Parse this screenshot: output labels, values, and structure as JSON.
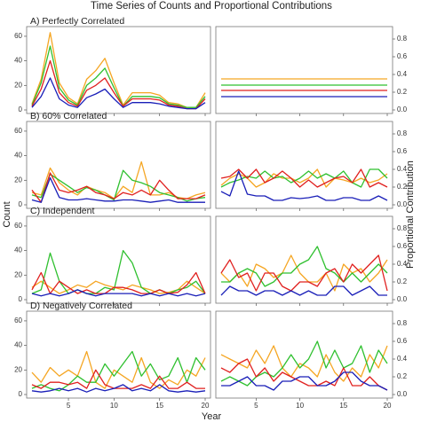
{
  "title": "Time Series of Counts and Proportional Contributions",
  "xlabel": "Year",
  "ylabel_left": "Count",
  "ylabel_right": "Proportional Contribution",
  "colors": {
    "orange": "#f5a623",
    "green": "#2fc02f",
    "red": "#e0201f",
    "blue": "#1a1fb8"
  },
  "panel_labels": [
    "A) Perfectly Correlated",
    "B) 60% Correlated",
    "C) Independent",
    "D) Negatively Correlated"
  ],
  "x_ticks": [
    "5",
    "10",
    "15",
    "20"
  ],
  "count_ticks": [
    "0",
    "20",
    "40",
    "60"
  ],
  "prop_ticks": [
    "0.0",
    "0.2",
    "0.4",
    "0.6",
    "0.8"
  ],
  "chart_data": [
    {
      "type": "line",
      "panel": "A) Perfectly Correlated",
      "measure": "count",
      "x": [
        1,
        2,
        3,
        4,
        5,
        6,
        7,
        8,
        9,
        10,
        11,
        12,
        13,
        14,
        15,
        16,
        17,
        18,
        19,
        20
      ],
      "xlim": [
        1,
        20
      ],
      "ylim": [
        0,
        65
      ],
      "series": [
        {
          "color": "orange",
          "values": [
            5,
            25,
            63,
            22,
            10,
            5,
            25,
            32,
            42,
            22,
            4,
            14,
            14,
            14,
            12,
            6,
            5,
            2,
            2,
            14
          ]
        },
        {
          "color": "green",
          "values": [
            4,
            22,
            52,
            18,
            8,
            4,
            20,
            26,
            34,
            18,
            3,
            11,
            11,
            11,
            10,
            5,
            4,
            2,
            2,
            11
          ]
        },
        {
          "color": "red",
          "values": [
            3,
            17,
            40,
            14,
            6,
            3,
            16,
            20,
            26,
            14,
            3,
            9,
            9,
            9,
            8,
            4,
            3,
            1,
            1,
            9
          ]
        },
        {
          "color": "blue",
          "values": [
            2,
            11,
            26,
            9,
            4,
            2,
            10,
            13,
            17,
            9,
            2,
            6,
            6,
            6,
            5,
            3,
            2,
            1,
            1,
            6
          ]
        }
      ]
    },
    {
      "type": "line",
      "panel": "A) Perfectly Correlated",
      "measure": "proportion",
      "x": [
        1,
        2,
        3,
        4,
        5,
        6,
        7,
        8,
        9,
        10,
        11,
        12,
        13,
        14,
        15,
        16,
        17,
        18,
        19,
        20
      ],
      "xlim": [
        1,
        20
      ],
      "ylim": [
        0,
        0.9
      ],
      "series": [
        {
          "color": "orange",
          "values": [
            0.35,
            0.35,
            0.35,
            0.35,
            0.35,
            0.35,
            0.35,
            0.35,
            0.35,
            0.35,
            0.35,
            0.35,
            0.35,
            0.35,
            0.35,
            0.35,
            0.35,
            0.35,
            0.35,
            0.35
          ]
        },
        {
          "color": "green",
          "values": [
            0.28,
            0.28,
            0.28,
            0.28,
            0.28,
            0.28,
            0.28,
            0.28,
            0.28,
            0.28,
            0.28,
            0.28,
            0.28,
            0.28,
            0.28,
            0.28,
            0.28,
            0.28,
            0.28,
            0.28
          ]
        },
        {
          "color": "red",
          "values": [
            0.22,
            0.22,
            0.22,
            0.22,
            0.22,
            0.22,
            0.22,
            0.22,
            0.22,
            0.22,
            0.22,
            0.22,
            0.22,
            0.22,
            0.22,
            0.22,
            0.22,
            0.22,
            0.22,
            0.22
          ]
        },
        {
          "color": "blue",
          "values": [
            0.15,
            0.15,
            0.15,
            0.15,
            0.15,
            0.15,
            0.15,
            0.15,
            0.15,
            0.15,
            0.15,
            0.15,
            0.15,
            0.15,
            0.15,
            0.15,
            0.15,
            0.15,
            0.15,
            0.15
          ]
        }
      ]
    },
    {
      "type": "line",
      "panel": "B) 60% Correlated",
      "measure": "count",
      "x": [
        1,
        2,
        3,
        4,
        5,
        6,
        7,
        8,
        9,
        10,
        11,
        12,
        13,
        14,
        15,
        16,
        17,
        18,
        19,
        20
      ],
      "xlim": [
        1,
        20
      ],
      "ylim": [
        0,
        65
      ],
      "series": [
        {
          "color": "orange",
          "values": [
            10,
            8,
            30,
            18,
            12,
            8,
            15,
            12,
            10,
            5,
            15,
            10,
            35,
            8,
            8,
            10,
            6,
            5,
            8,
            10
          ]
        },
        {
          "color": "green",
          "values": [
            8,
            6,
            25,
            20,
            15,
            10,
            14,
            12,
            8,
            4,
            28,
            20,
            18,
            15,
            10,
            8,
            6,
            3,
            5,
            6
          ]
        },
        {
          "color": "red",
          "values": [
            12,
            2,
            26,
            12,
            10,
            12,
            15,
            10,
            8,
            5,
            10,
            8,
            12,
            8,
            20,
            12,
            5,
            5,
            5,
            8
          ]
        },
        {
          "color": "blue",
          "values": [
            4,
            2,
            22,
            6,
            4,
            4,
            5,
            4,
            3,
            3,
            4,
            4,
            3,
            2,
            3,
            4,
            2,
            2,
            2,
            2
          ]
        }
      ]
    },
    {
      "type": "line",
      "panel": "B) 60% Correlated",
      "measure": "proportion",
      "x": [
        1,
        2,
        3,
        4,
        5,
        6,
        7,
        8,
        9,
        10,
        11,
        12,
        13,
        14,
        15,
        16,
        17,
        18,
        19,
        20
      ],
      "xlim": [
        1,
        20
      ],
      "ylim": [
        0,
        0.9
      ],
      "series": [
        {
          "color": "orange",
          "values": [
            0.22,
            0.3,
            0.35,
            0.3,
            0.2,
            0.25,
            0.35,
            0.3,
            0.3,
            0.25,
            0.3,
            0.4,
            0.2,
            0.3,
            0.28,
            0.25,
            0.3,
            0.25,
            0.28,
            0.35
          ]
        },
        {
          "color": "green",
          "values": [
            0.2,
            0.25,
            0.28,
            0.32,
            0.3,
            0.38,
            0.3,
            0.32,
            0.25,
            0.3,
            0.38,
            0.3,
            0.35,
            0.3,
            0.38,
            0.25,
            0.2,
            0.4,
            0.4,
            0.3
          ]
        },
        {
          "color": "red",
          "values": [
            0.3,
            0.32,
            0.4,
            0.3,
            0.4,
            0.25,
            0.3,
            0.38,
            0.3,
            0.2,
            0.28,
            0.2,
            0.25,
            0.3,
            0.32,
            0.25,
            0.4,
            0.2,
            0.25,
            0.2
          ]
        },
        {
          "color": "blue",
          "values": [
            0.15,
            0.1,
            0.38,
            0.12,
            0.1,
            0.1,
            0.05,
            0.05,
            0.08,
            0.07,
            0.08,
            0.1,
            0.05,
            0.05,
            0.08,
            0.08,
            0.05,
            0.05,
            0.1,
            0.05
          ]
        }
      ]
    },
    {
      "type": "line",
      "panel": "C) Independent",
      "measure": "count",
      "x": [
        1,
        2,
        3,
        4,
        5,
        6,
        7,
        8,
        9,
        10,
        11,
        12,
        13,
        14,
        15,
        16,
        17,
        18,
        19,
        20
      ],
      "xlim": [
        1,
        20
      ],
      "ylim": [
        0,
        65
      ],
      "series": [
        {
          "color": "orange",
          "values": [
            10,
            15,
            10,
            5,
            8,
            12,
            10,
            15,
            12,
            10,
            8,
            12,
            10,
            8,
            5,
            6,
            8,
            15,
            10,
            5
          ]
        },
        {
          "color": "green",
          "values": [
            5,
            8,
            38,
            15,
            5,
            8,
            5,
            5,
            10,
            8,
            40,
            30,
            10,
            5,
            8,
            5,
            8,
            10,
            15,
            5
          ]
        },
        {
          "color": "red",
          "values": [
            8,
            22,
            5,
            15,
            10,
            5,
            8,
            5,
            5,
            10,
            10,
            8,
            5,
            5,
            8,
            5,
            6,
            12,
            22,
            5
          ]
        },
        {
          "color": "blue",
          "values": [
            5,
            3,
            5,
            3,
            5,
            8,
            5,
            3,
            5,
            5,
            5,
            5,
            3,
            5,
            3,
            5,
            3,
            5,
            3,
            5
          ]
        }
      ]
    },
    {
      "type": "line",
      "panel": "C) Independent",
      "measure": "proportion",
      "x": [
        1,
        2,
        3,
        4,
        5,
        6,
        7,
        8,
        9,
        10,
        11,
        12,
        13,
        14,
        15,
        16,
        17,
        18,
        19,
        20
      ],
      "xlim": [
        1,
        20
      ],
      "ylim": [
        0,
        0.9
      ],
      "series": [
        {
          "color": "orange",
          "values": [
            0.3,
            0.2,
            0.3,
            0.15,
            0.4,
            0.35,
            0.25,
            0.3,
            0.5,
            0.3,
            0.2,
            0.2,
            0.3,
            0.1,
            0.4,
            0.3,
            0.35,
            0.2,
            0.3,
            0.45
          ]
        },
        {
          "color": "green",
          "values": [
            0.2,
            0.2,
            0.3,
            0.35,
            0.3,
            0.15,
            0.2,
            0.3,
            0.3,
            0.4,
            0.45,
            0.6,
            0.35,
            0.3,
            0.2,
            0.3,
            0.2,
            0.3,
            0.4,
            0.3
          ]
        },
        {
          "color": "red",
          "values": [
            0.3,
            0.45,
            0.25,
            0.3,
            0.1,
            0.3,
            0.3,
            0.15,
            0.1,
            0.2,
            0.2,
            0.15,
            0.3,
            0.35,
            0.2,
            0.4,
            0.3,
            0.4,
            0.5,
            0.1
          ]
        },
        {
          "color": "blue",
          "values": [
            0.05,
            0.15,
            0.1,
            0.1,
            0.05,
            0.1,
            0.1,
            0.05,
            0.1,
            0.05,
            0.1,
            0.05,
            0.05,
            0.15,
            0.15,
            0.05,
            0.1,
            0.15,
            0.05,
            0.05
          ]
        }
      ]
    },
    {
      "type": "line",
      "panel": "D) Negatively Correlated",
      "measure": "count",
      "x": [
        1,
        2,
        3,
        4,
        5,
        6,
        7,
        8,
        9,
        10,
        11,
        12,
        13,
        14,
        15,
        16,
        17,
        18,
        19,
        20
      ],
      "xlim": [
        1,
        20
      ],
      "ylim": [
        0,
        65
      ],
      "series": [
        {
          "color": "orange",
          "values": [
            18,
            10,
            22,
            15,
            20,
            15,
            35,
            10,
            5,
            20,
            15,
            10,
            30,
            10,
            5,
            12,
            8,
            20,
            15,
            30
          ]
        },
        {
          "color": "green",
          "values": [
            5,
            8,
            5,
            3,
            8,
            15,
            10,
            10,
            25,
            15,
            25,
            35,
            15,
            25,
            12,
            15,
            30,
            10,
            30,
            20
          ]
        },
        {
          "color": "red",
          "values": [
            8,
            5,
            10,
            10,
            8,
            10,
            5,
            20,
            8,
            5,
            5,
            5,
            8,
            5,
            15,
            5,
            5,
            10,
            5,
            5
          ]
        },
        {
          "color": "blue",
          "values": [
            3,
            2,
            3,
            5,
            3,
            5,
            2,
            5,
            3,
            5,
            8,
            3,
            5,
            3,
            8,
            3,
            2,
            3,
            2,
            3
          ]
        }
      ]
    },
    {
      "type": "line",
      "panel": "D) Negatively Correlated",
      "measure": "proportion",
      "x": [
        1,
        2,
        3,
        4,
        5,
        6,
        7,
        8,
        9,
        10,
        11,
        12,
        13,
        14,
        15,
        16,
        17,
        18,
        19,
        20
      ],
      "xlim": [
        1,
        20
      ],
      "ylim": [
        0,
        0.9
      ],
      "series": [
        {
          "color": "orange",
          "values": [
            0.45,
            0.4,
            0.35,
            0.3,
            0.5,
            0.35,
            0.55,
            0.3,
            0.2,
            0.35,
            0.3,
            0.2,
            0.45,
            0.25,
            0.15,
            0.3,
            0.2,
            0.45,
            0.3,
            0.55
          ]
        },
        {
          "color": "green",
          "values": [
            0.15,
            0.2,
            0.15,
            0.1,
            0.2,
            0.25,
            0.2,
            0.3,
            0.45,
            0.3,
            0.4,
            0.6,
            0.3,
            0.5,
            0.3,
            0.35,
            0.55,
            0.25,
            0.5,
            0.35
          ]
        },
        {
          "color": "red",
          "values": [
            0.3,
            0.25,
            0.35,
            0.4,
            0.2,
            0.3,
            0.15,
            0.25,
            0.2,
            0.15,
            0.1,
            0.1,
            0.15,
            0.1,
            0.3,
            0.1,
            0.1,
            0.2,
            0.1,
            0.05
          ]
        },
        {
          "color": "blue",
          "values": [
            0.1,
            0.1,
            0.15,
            0.2,
            0.1,
            0.1,
            0.05,
            0.15,
            0.15,
            0.2,
            0.2,
            0.1,
            0.1,
            0.15,
            0.25,
            0.25,
            0.15,
            0.1,
            0.1,
            0.05
          ]
        }
      ]
    }
  ]
}
